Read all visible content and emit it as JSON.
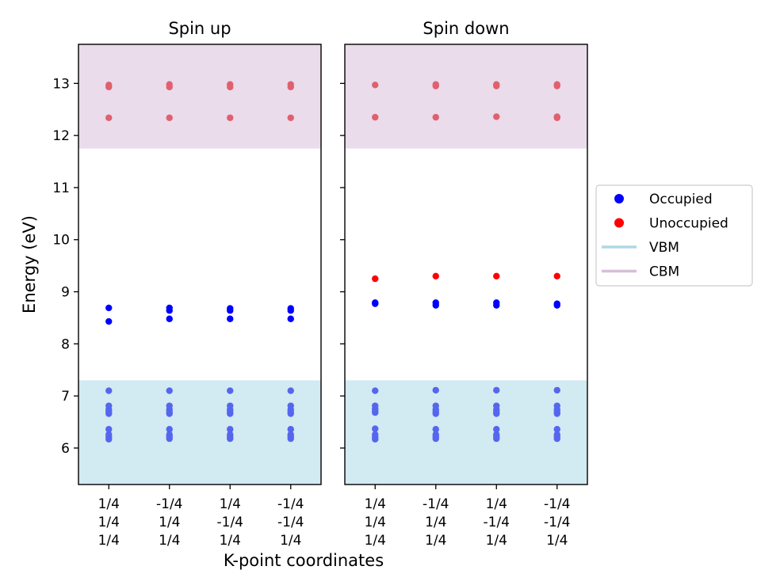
{
  "chart_data": {
    "type": "scatter",
    "xlabel": "K-point coordinates",
    "ylabel": "Energy (eV)",
    "ylim": [
      5.3,
      13.75
    ],
    "yticks": [
      6,
      7,
      8,
      9,
      10,
      11,
      12,
      13
    ],
    "kpoint_labels": [
      [
        "1/4",
        "1/4",
        "1/4"
      ],
      [
        "-1/4",
        "1/4",
        "1/4"
      ],
      [
        "1/4",
        "-1/4",
        "1/4"
      ],
      [
        "-1/4",
        "-1/4",
        "1/4"
      ]
    ],
    "vbm_band": [
      5.3,
      7.3
    ],
    "cbm_band": [
      11.75,
      13.75
    ],
    "colors": {
      "occupied": "#0000ff",
      "occupied_deep": "#5566ee",
      "unoccupied": "#ff0000",
      "unoccupied_band": "#e06070",
      "vbm": "#add8e6",
      "cbm": "#d8bfd8"
    },
    "legend": {
      "placement": "right",
      "entries": [
        {
          "label": "Occupied",
          "kind": "marker",
          "color": "#0000ff"
        },
        {
          "label": "Unoccupied",
          "kind": "marker",
          "color": "#ff0000"
        },
        {
          "label": "VBM",
          "kind": "line",
          "color": "#add8e6"
        },
        {
          "label": "CBM",
          "kind": "line",
          "color": "#d8bfd8"
        }
      ]
    },
    "panels": [
      {
        "title": "Spin up",
        "series": [
          {
            "kind": "occupied_deep",
            "points": [
              [
                0,
                6.17
              ],
              [
                0,
                6.21
              ],
              [
                0,
                6.26
              ],
              [
                0,
                6.36
              ],
              [
                0,
                6.66
              ],
              [
                0,
                6.7
              ],
              [
                0,
                6.74
              ],
              [
                0,
                6.81
              ],
              [
                0,
                7.1
              ],
              [
                1,
                6.18
              ],
              [
                1,
                6.22
              ],
              [
                1,
                6.26
              ],
              [
                1,
                6.36
              ],
              [
                1,
                6.66
              ],
              [
                1,
                6.7
              ],
              [
                1,
                6.74
              ],
              [
                1,
                6.81
              ],
              [
                1,
                7.1
              ],
              [
                2,
                6.18
              ],
              [
                2,
                6.22
              ],
              [
                2,
                6.26
              ],
              [
                2,
                6.36
              ],
              [
                2,
                6.66
              ],
              [
                2,
                6.7
              ],
              [
                2,
                6.74
              ],
              [
                2,
                6.81
              ],
              [
                2,
                7.1
              ],
              [
                3,
                6.18
              ],
              [
                3,
                6.22
              ],
              [
                3,
                6.26
              ],
              [
                3,
                6.36
              ],
              [
                3,
                6.66
              ],
              [
                3,
                6.7
              ],
              [
                3,
                6.74
              ],
              [
                3,
                6.81
              ],
              [
                3,
                7.1
              ]
            ]
          },
          {
            "kind": "occupied",
            "points": [
              [
                0,
                8.43
              ],
              [
                0,
                8.69
              ],
              [
                1,
                8.48
              ],
              [
                1,
                8.64
              ],
              [
                1,
                8.69
              ],
              [
                2,
                8.48
              ],
              [
                2,
                8.64
              ],
              [
                2,
                8.68
              ],
              [
                3,
                8.48
              ],
              [
                3,
                8.64
              ],
              [
                3,
                8.68
              ]
            ]
          },
          {
            "kind": "unoccupied_band",
            "points": [
              [
                0,
                12.34
              ],
              [
                0,
                12.93
              ],
              [
                0,
                12.97
              ],
              [
                1,
                12.34
              ],
              [
                1,
                12.93
              ],
              [
                1,
                12.98
              ],
              [
                2,
                12.34
              ],
              [
                2,
                12.93
              ],
              [
                2,
                12.98
              ],
              [
                3,
                12.34
              ],
              [
                3,
                12.93
              ],
              [
                3,
                12.98
              ]
            ]
          }
        ]
      },
      {
        "title": "Spin down",
        "series": [
          {
            "kind": "occupied_deep",
            "points": [
              [
                0,
                6.17
              ],
              [
                0,
                6.21
              ],
              [
                0,
                6.26
              ],
              [
                0,
                6.37
              ],
              [
                0,
                6.68
              ],
              [
                0,
                6.71
              ],
              [
                0,
                6.75
              ],
              [
                0,
                6.81
              ],
              [
                0,
                7.1
              ],
              [
                1,
                6.18
              ],
              [
                1,
                6.22
              ],
              [
                1,
                6.26
              ],
              [
                1,
                6.36
              ],
              [
                1,
                6.66
              ],
              [
                1,
                6.7
              ],
              [
                1,
                6.74
              ],
              [
                1,
                6.81
              ],
              [
                1,
                7.11
              ],
              [
                2,
                6.18
              ],
              [
                2,
                6.22
              ],
              [
                2,
                6.26
              ],
              [
                2,
                6.36
              ],
              [
                2,
                6.66
              ],
              [
                2,
                6.7
              ],
              [
                2,
                6.74
              ],
              [
                2,
                6.81
              ],
              [
                2,
                7.11
              ],
              [
                3,
                6.18
              ],
              [
                3,
                6.22
              ],
              [
                3,
                6.26
              ],
              [
                3,
                6.36
              ],
              [
                3,
                6.66
              ],
              [
                3,
                6.7
              ],
              [
                3,
                6.74
              ],
              [
                3,
                6.81
              ],
              [
                3,
                7.11
              ]
            ]
          },
          {
            "kind": "occupied",
            "points": [
              [
                0,
                8.77
              ],
              [
                0,
                8.79
              ],
              [
                1,
                8.74
              ],
              [
                1,
                8.79
              ],
              [
                2,
                8.74
              ],
              [
                2,
                8.79
              ],
              [
                3,
                8.74
              ],
              [
                3,
                8.77
              ]
            ]
          },
          {
            "kind": "unoccupied",
            "points": [
              [
                0,
                9.25
              ],
              [
                1,
                9.3
              ],
              [
                2,
                9.3
              ],
              [
                3,
                9.3
              ]
            ]
          },
          {
            "kind": "unoccupied_band",
            "points": [
              [
                0,
                12.35
              ],
              [
                0,
                12.97
              ],
              [
                1,
                12.35
              ],
              [
                1,
                12.95
              ],
              [
                1,
                12.98
              ],
              [
                2,
                12.36
              ],
              [
                2,
                12.95
              ],
              [
                2,
                12.98
              ],
              [
                3,
                12.34
              ],
              [
                3,
                12.36
              ],
              [
                3,
                12.95
              ],
              [
                3,
                12.98
              ]
            ]
          }
        ]
      }
    ]
  }
}
